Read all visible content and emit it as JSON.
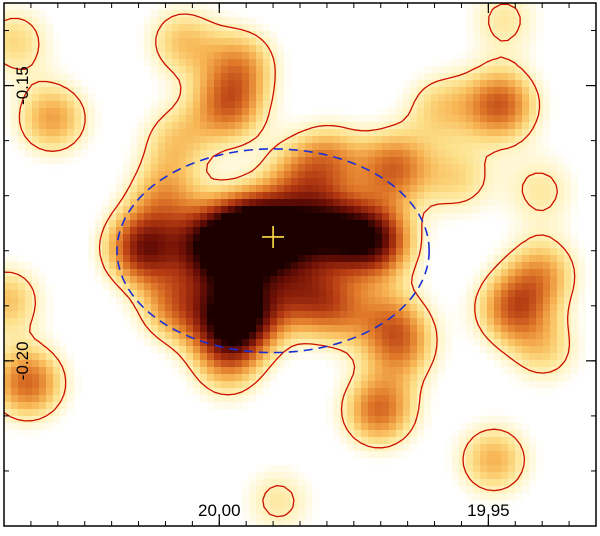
{
  "chart_data": {
    "type": "heatmap",
    "title": "",
    "xlabel": "",
    "ylabel": "",
    "xlim": [
      20.04,
      19.93
    ],
    "ylim": [
      -0.23,
      -0.135
    ],
    "x_ticks": [
      {
        "value": 20.0,
        "label": "20.00"
      },
      {
        "value": 19.95,
        "label": "19.95"
      }
    ],
    "y_ticks": [
      {
        "value": -0.15,
        "label": "-0.15"
      },
      {
        "value": -0.2,
        "label": "-0.20"
      }
    ],
    "x_minor_step": 0.005,
    "y_minor_step": 0.01,
    "colormap": [
      "#ffffff",
      "#fff4c4",
      "#fde08a",
      "#f7b453",
      "#e07a2a",
      "#b53a12",
      "#6e0f06",
      "#1c0000"
    ],
    "contour_color": "#cc1100",
    "marker": {
      "type": "cross",
      "x": 19.99,
      "y": -0.1775,
      "color": "#ffe14a"
    },
    "ellipse": {
      "cx": 19.99,
      "cy": -0.18,
      "rx": 0.029,
      "ry": 0.0185,
      "color": "#1a2fd6",
      "style": "dashed"
    },
    "emission_peaks": [
      {
        "x": 19.9906,
        "y": -0.1775,
        "amplitude": 1.0
      },
      {
        "x": 20.0142,
        "y": -0.1795,
        "amplitude": 0.78
      },
      {
        "x": 20.0022,
        "y": -0.179,
        "amplitude": 0.72
      },
      {
        "x": 19.996,
        "y": -0.176,
        "amplitude": 0.66
      },
      {
        "x": 19.9817,
        "y": -0.176,
        "amplitude": 0.7
      },
      {
        "x": 19.9703,
        "y": -0.1785,
        "amplitude": 0.64
      },
      {
        "x": 19.9753,
        "y": -0.177,
        "amplitude": 0.52
      },
      {
        "x": 19.9939,
        "y": -0.192,
        "amplitude": 0.44
      },
      {
        "x": 19.9983,
        "y": -0.1935,
        "amplitude": 0.74
      },
      {
        "x": 19.997,
        "y": -0.185,
        "amplitude": 0.5
      },
      {
        "x": 19.985,
        "y": -0.1875,
        "amplitude": 0.48
      },
      {
        "x": 19.9783,
        "y": -0.1905,
        "amplitude": 0.44
      },
      {
        "x": 20.0081,
        "y": -0.19,
        "amplitude": 0.48
      },
      {
        "x": 20.0102,
        "y": -0.17,
        "amplitude": 0.38
      },
      {
        "x": 19.968,
        "y": -0.193,
        "amplitude": 0.38
      },
      {
        "x": 19.9985,
        "y": -0.201,
        "amplitude": 0.32
      },
      {
        "x": 19.9795,
        "y": -0.1635,
        "amplitude": 0.42
      },
      {
        "x": 19.986,
        "y": -0.167,
        "amplitude": 0.34
      },
      {
        "x": 19.9983,
        "y": -0.154,
        "amplitude": 0.52
      },
      {
        "x": 19.996,
        "y": -0.146,
        "amplitude": 0.4
      },
      {
        "x": 20.0068,
        "y": -0.142,
        "amplitude": 0.34
      },
      {
        "x": 19.9675,
        "y": -0.165,
        "amplitude": 0.55
      },
      {
        "x": 19.9556,
        "y": -0.167,
        "amplitude": 0.28
      },
      {
        "x": 19.9477,
        "y": -0.1535,
        "amplitude": 0.6
      },
      {
        "x": 19.959,
        "y": -0.154,
        "amplitude": 0.3
      },
      {
        "x": 19.9402,
        "y": -0.169,
        "amplitude": 0.24
      },
      {
        "x": 20.031,
        "y": -0.156,
        "amplitude": 0.44
      },
      {
        "x": 20.0356,
        "y": -0.204,
        "amplitude": 0.58
      },
      {
        "x": 20.008,
        "y": -0.16,
        "amplitude": 0.3
      },
      {
        "x": 19.9455,
        "y": -0.1905,
        "amplitude": 0.54
      },
      {
        "x": 19.94,
        "y": -0.184,
        "amplitude": 0.4
      },
      {
        "x": 19.9703,
        "y": -0.209,
        "amplitude": 0.56
      },
      {
        "x": 19.949,
        "y": -0.218,
        "amplitude": 0.4
      },
      {
        "x": 19.966,
        "y": -0.198,
        "amplitude": 0.34
      },
      {
        "x": 19.9395,
        "y": -0.198,
        "amplitude": 0.28
      },
      {
        "x": 20.038,
        "y": -0.142,
        "amplitude": 0.3
      },
      {
        "x": 20.0395,
        "y": -0.189,
        "amplitude": 0.36
      },
      {
        "x": 19.989,
        "y": -0.2255,
        "amplitude": 0.24
      },
      {
        "x": 19.947,
        "y": -0.138,
        "amplitude": 0.24
      }
    ]
  }
}
